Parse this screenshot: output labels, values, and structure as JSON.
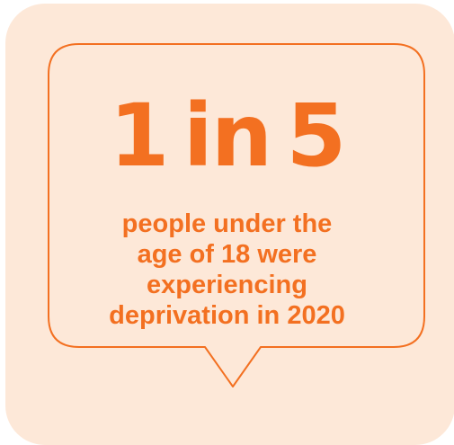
{
  "colors": {
    "card_background": "#fde8d8",
    "accent": "#f37021"
  },
  "headline": "1 in 5",
  "caption_lines": [
    "people under the",
    "age of 18 were",
    "experiencing",
    "deprivation in 2020"
  ]
}
